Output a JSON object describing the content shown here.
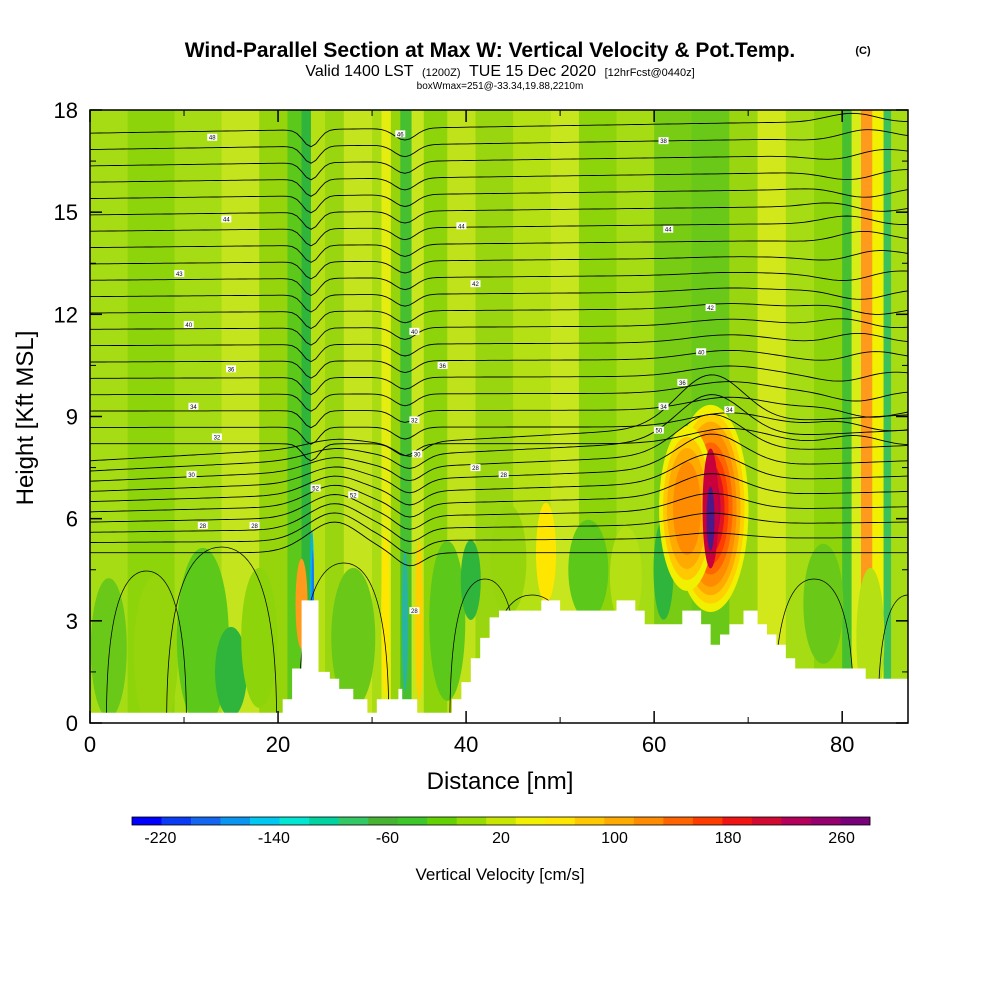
{
  "chart_data": {
    "type": "heatmap",
    "title": "Wind-Parallel Section at Max W: Vertical Velocity & Pot.Temp.",
    "title_tag": "(C)",
    "subtitle_main_a": "Valid 1400 LST",
    "subtitle_small_a": "(1200Z)",
    "subtitle_main_b": "TUE 15 Dec 2020",
    "subtitle_small_b": "[12hrFcst@0440z]",
    "subtitle_line3": "boxWmax=251@-33.34,19.88,2210m",
    "xlabel": "Distance [nm]",
    "ylabel": "Height [Kft MSL]",
    "xlim": [
      0,
      87
    ],
    "ylim": [
      0,
      18
    ],
    "x_ticks": [
      "0",
      "20",
      "40",
      "60",
      "80"
    ],
    "y_ticks": [
      "0",
      "3",
      "6",
      "9",
      "12",
      "15",
      "18"
    ],
    "colorbar": {
      "label": "Vertical Velocity [cm/s]",
      "range": [
        -240,
        280
      ],
      "tick_labels": [
        "-220",
        "-140",
        "-60",
        "20",
        "100",
        "180",
        "260"
      ],
      "colors": [
        "#0000ff",
        "#0a3cf5",
        "#1466f0",
        "#0a96f0",
        "#00c8f0",
        "#00e6d2",
        "#00d2a0",
        "#32c864",
        "#46b432",
        "#3cc828",
        "#64d200",
        "#96dc00",
        "#c8e600",
        "#f0f000",
        "#ffe600",
        "#ffc800",
        "#ffaa00",
        "#ff8c00",
        "#ff6400",
        "#ff3c00",
        "#f01414",
        "#d20a32",
        "#b4005a",
        "#96006e",
        "#780078"
      ]
    },
    "updraft_max": {
      "value": 251,
      "x_nm": 66,
      "height_kft": 6.3
    },
    "contour_labels": [
      "48",
      "46",
      "38",
      "44",
      "43",
      "42",
      "40",
      "36",
      "34",
      "32",
      "30",
      "28",
      "52",
      "50"
    ],
    "theta_series_note": "potential temperature contours labeled in °C"
  }
}
